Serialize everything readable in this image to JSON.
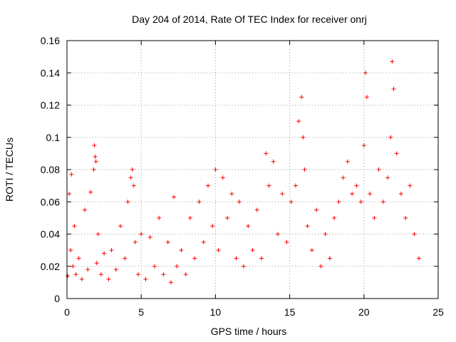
{
  "chart_data": {
    "type": "scatter",
    "title": "Day 204 of 2014, Rate Of TEC Index for receiver onrj",
    "xlabel": "GPS time / hours",
    "ylabel": "ROTI / TECUs",
    "xlim": [
      0,
      25
    ],
    "ylim": [
      0,
      0.16
    ],
    "xticks": [
      0,
      5,
      10,
      15,
      20,
      25
    ],
    "xtick_labels": [
      "0",
      "5",
      "10",
      "15",
      "20",
      "25"
    ],
    "yticks": [
      0,
      0.02,
      0.04,
      0.06,
      0.08,
      0.1,
      0.12,
      0.14,
      0.16
    ],
    "ytick_labels": [
      "0",
      "0.02",
      "0.04",
      "0.06",
      "0.08",
      "0.1",
      "0.12",
      "0.14",
      "0.16"
    ],
    "grid": true,
    "marker": "plus",
    "color": "#ff0000",
    "series": [
      {
        "name": "ROTI",
        "x": [
          0.05,
          0.15,
          0.25,
          0.3,
          0.4,
          0.5,
          0.6,
          0.8,
          1.0,
          1.2,
          1.4,
          1.6,
          1.8,
          1.85,
          1.9,
          1.95,
          2.0,
          2.1,
          2.3,
          2.5,
          2.8,
          3.0,
          3.3,
          3.6,
          3.9,
          4.1,
          4.3,
          4.4,
          4.5,
          4.6,
          4.8,
          5.0,
          5.3,
          5.6,
          5.9,
          6.2,
          6.5,
          6.8,
          7.0,
          7.2,
          7.4,
          7.7,
          8.0,
          8.3,
          8.6,
          8.9,
          9.2,
          9.5,
          9.8,
          10.0,
          10.2,
          10.5,
          10.8,
          11.1,
          11.4,
          11.6,
          11.9,
          12.2,
          12.5,
          12.8,
          13.1,
          13.4,
          13.6,
          13.9,
          14.2,
          14.5,
          14.8,
          15.1,
          15.4,
          15.6,
          15.8,
          15.9,
          16.0,
          16.2,
          16.5,
          16.8,
          17.1,
          17.4,
          17.7,
          18.0,
          18.3,
          18.6,
          18.9,
          19.2,
          19.5,
          19.8,
          20.0,
          20.1,
          20.2,
          20.4,
          20.7,
          21.0,
          21.3,
          21.6,
          21.8,
          21.9,
          22.0,
          22.2,
          22.5,
          22.8,
          23.1,
          23.4,
          23.7
        ],
        "y": [
          0.014,
          0.065,
          0.03,
          0.077,
          0.02,
          0.045,
          0.015,
          0.025,
          0.012,
          0.055,
          0.018,
          0.066,
          0.08,
          0.095,
          0.088,
          0.085,
          0.022,
          0.04,
          0.015,
          0.028,
          0.012,
          0.03,
          0.018,
          0.045,
          0.025,
          0.06,
          0.075,
          0.08,
          0.07,
          0.035,
          0.015,
          0.04,
          0.012,
          0.038,
          0.02,
          0.05,
          0.015,
          0.035,
          0.01,
          0.063,
          0.02,
          0.03,
          0.015,
          0.05,
          0.025,
          0.06,
          0.035,
          0.07,
          0.045,
          0.08,
          0.03,
          0.075,
          0.05,
          0.065,
          0.025,
          0.06,
          0.02,
          0.045,
          0.03,
          0.055,
          0.025,
          0.09,
          0.07,
          0.085,
          0.04,
          0.065,
          0.035,
          0.06,
          0.07,
          0.11,
          0.125,
          0.1,
          0.08,
          0.045,
          0.03,
          0.055,
          0.02,
          0.04,
          0.025,
          0.05,
          0.06,
          0.075,
          0.085,
          0.065,
          0.07,
          0.06,
          0.095,
          0.14,
          0.125,
          0.065,
          0.05,
          0.08,
          0.06,
          0.075,
          0.1,
          0.147,
          0.13,
          0.09,
          0.065,
          0.05,
          0.07,
          0.04,
          0.025
        ]
      }
    ]
  }
}
